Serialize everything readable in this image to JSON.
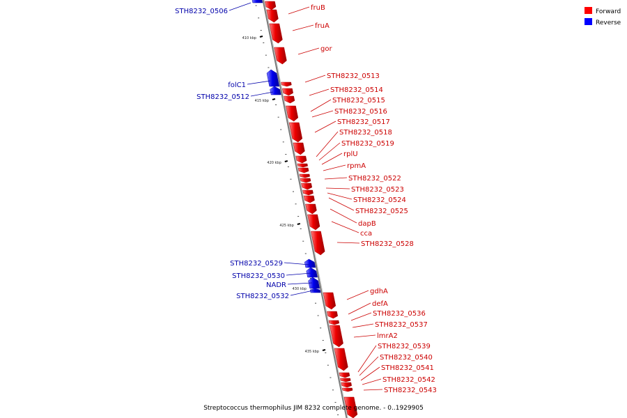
{
  "caption": "Streptococcus thermophilus JIM 8232 complete genome. - 0..1929905",
  "legend": {
    "forward_label": "Forward",
    "reverse_label": "Reverse",
    "forward_color": "#ff0000",
    "reverse_color": "#0000ff"
  },
  "colors": {
    "forward": "#ee1111",
    "forward_dark": "#aa0000",
    "forward_light": "#ff7777",
    "reverse": "#1111ee",
    "reverse_dark": "#0000aa",
    "reverse_light": "#7777ff",
    "forward_text": "#cc0000",
    "reverse_text": "#0000aa",
    "backbone": "#999999"
  },
  "kbp_marks": [
    "410 kbp",
    "415 kbp",
    "420 kbp",
    "425 kbp",
    "430 kbp",
    "435 kbp"
  ],
  "genes": {
    "forward": [
      "fruB",
      "fruA",
      "gor",
      "STH8232_0513",
      "STH8232_0514",
      "STH8232_0515",
      "STH8232_0516",
      "STH8232_0517",
      "STH8232_0518",
      "STH8232_0519",
      "rplU",
      "rpmA",
      "STH8232_0522",
      "STH8232_0523",
      "STH8232_0524",
      "STH8232_0525",
      "dapB",
      "cca",
      "STH8232_0528",
      "gdhA",
      "defA",
      "STH8232_0536",
      "STH8232_0537",
      "lmrA2",
      "STH8232_0539",
      "STH8232_0540",
      "STH8232_0541",
      "STH8232_0542",
      "STH8232_0543"
    ],
    "reverse": [
      "STH8232_0506",
      "folC1",
      "STH8232_0512",
      "STH8232_0529",
      "STH8232_0530",
      "NADR",
      "STH8232_0532"
    ]
  }
}
